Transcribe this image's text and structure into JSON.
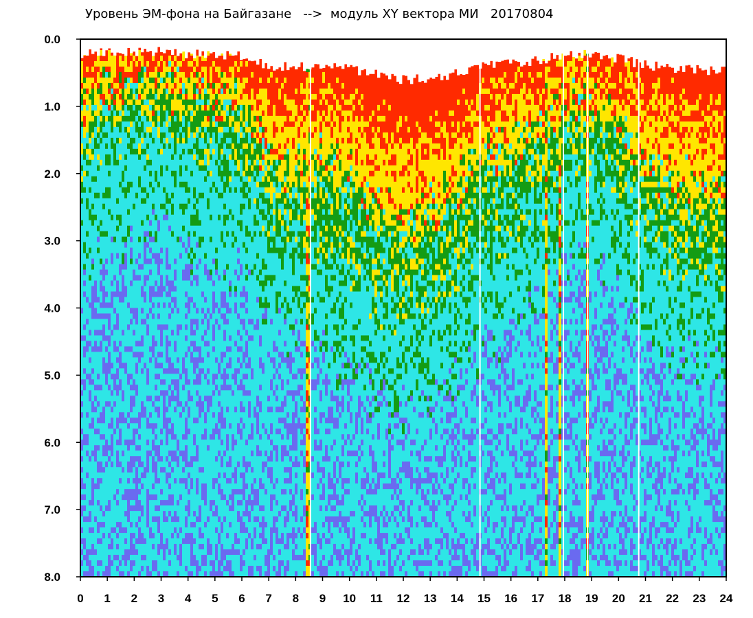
{
  "chart_data": {
    "type": "heatmap",
    "title": "Уровень ЭМ-фона на Байгазане   -->  модуль XY вектора МИ   20170804",
    "xlabel": "",
    "ylabel": "",
    "xlim": [
      0,
      24
    ],
    "ylim": [
      0,
      8
    ],
    "y_inverted": true,
    "grid": false,
    "x_ticks": [
      "0",
      "1",
      "2",
      "3",
      "4",
      "5",
      "6",
      "7",
      "8",
      "9",
      "10",
      "11",
      "12",
      "13",
      "14",
      "15",
      "16",
      "17",
      "18",
      "19",
      "20",
      "21",
      "22",
      "23",
      "24"
    ],
    "y_ticks": [
      "0.0",
      "1.0",
      "2.0",
      "3.0",
      "4.0",
      "5.0",
      "6.0",
      "7.0",
      "8.0"
    ],
    "colors": {
      "high": "#ff2a00",
      "upper": "#ffe600",
      "mid": "#149c14",
      "low": "#2ee6e6",
      "lowest": "#6a6af0"
    },
    "hourly_band_depth": [
      {
        "hour": 0,
        "red": 0.5,
        "yellow": 1.0,
        "green": 1.8
      },
      {
        "hour": 1,
        "red": 0.3,
        "yellow": 0.8,
        "green": 1.6
      },
      {
        "hour": 2,
        "red": 0.3,
        "yellow": 0.7,
        "green": 1.5
      },
      {
        "hour": 3,
        "red": 0.3,
        "yellow": 0.7,
        "green": 1.4
      },
      {
        "hour": 4,
        "red": 0.4,
        "yellow": 0.8,
        "green": 1.6
      },
      {
        "hour": 5,
        "red": 0.4,
        "yellow": 0.9,
        "green": 1.8
      },
      {
        "hour": 6,
        "red": 0.5,
        "yellow": 1.0,
        "green": 2.0
      },
      {
        "hour": 7,
        "red": 0.9,
        "yellow": 1.8,
        "green": 2.8
      },
      {
        "hour": 8,
        "red": 1.0,
        "yellow": 2.0,
        "green": 3.0
      },
      {
        "hour": 9,
        "red": 0.9,
        "yellow": 1.8,
        "green": 3.2
      },
      {
        "hour": 10,
        "red": 1.0,
        "yellow": 2.0,
        "green": 3.5
      },
      {
        "hour": 11,
        "red": 1.3,
        "yellow": 2.4,
        "green": 3.8
      },
      {
        "hour": 12,
        "red": 1.5,
        "yellow": 2.8,
        "green": 4.1
      },
      {
        "hour": 13,
        "red": 1.5,
        "yellow": 2.6,
        "green": 4.0
      },
      {
        "hour": 14,
        "red": 1.2,
        "yellow": 2.2,
        "green": 3.5
      },
      {
        "hour": 15,
        "red": 0.9,
        "yellow": 1.7,
        "green": 3.0
      },
      {
        "hour": 16,
        "red": 0.8,
        "yellow": 1.6,
        "green": 2.8
      },
      {
        "hour": 17,
        "red": 0.7,
        "yellow": 1.4,
        "green": 2.5
      },
      {
        "hour": 18,
        "red": 0.4,
        "yellow": 1.0,
        "green": 1.8
      },
      {
        "hour": 19,
        "red": 0.4,
        "yellow": 1.0,
        "green": 1.8
      },
      {
        "hour": 20,
        "red": 0.6,
        "yellow": 1.3,
        "green": 2.2
      },
      {
        "hour": 21,
        "red": 0.9,
        "yellow": 1.9,
        "green": 2.9
      },
      {
        "hour": 22,
        "red": 1.0,
        "yellow": 2.1,
        "green": 3.2
      },
      {
        "hour": 23,
        "red": 1.1,
        "yellow": 2.3,
        "green": 3.4
      },
      {
        "hour": 24,
        "red": 1.1,
        "yellow": 2.3,
        "green": 3.5
      }
    ],
    "gap_hours": [
      8.55,
      14.85,
      17.95,
      18.85,
      20.75
    ],
    "event_hours": [
      8.4,
      8.5,
      17.3,
      17.8,
      18.85
    ]
  }
}
